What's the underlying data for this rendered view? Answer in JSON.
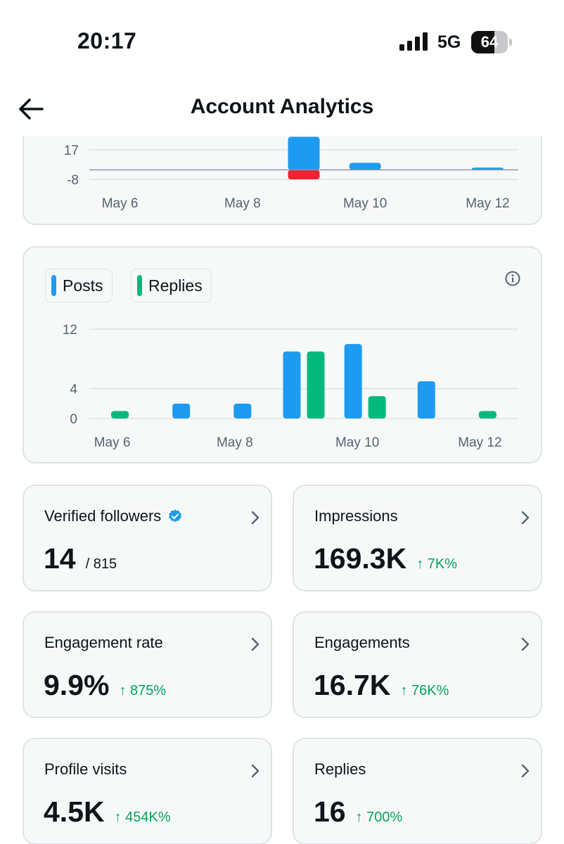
{
  "status_bar": {
    "time": "20:17",
    "network": "5G",
    "battery": "64",
    "battery_level": 0.64
  },
  "header": {
    "title": "Account Analytics",
    "back_icon": "arrow-left-icon"
  },
  "chart_top": {
    "type": "bar",
    "y_ticks": [
      "17",
      "-8"
    ],
    "x_ticks": [
      "May 6",
      "May 8",
      "May 10",
      "May 12"
    ],
    "colors": {
      "positive": "#1d9bf0",
      "negative": "#f4212e"
    },
    "bars": [
      {
        "x": "May 9",
        "positive": 28,
        "negative": -8
      },
      {
        "x": "May 10",
        "positive": 6,
        "negative": 0
      },
      {
        "x": "May 12",
        "positive": 2,
        "negative": 0
      }
    ]
  },
  "chart_data": {
    "type": "bar",
    "categories": [
      "May 6",
      "May 7",
      "May 8",
      "May 9",
      "May 10",
      "May 11",
      "May 12"
    ],
    "series": [
      {
        "name": "Posts",
        "color": "#1d9bf0",
        "values": [
          0,
          2,
          2,
          9,
          10,
          5,
          0
        ]
      },
      {
        "name": "Replies",
        "color": "#00ba7c",
        "values": [
          1,
          0,
          0,
          9,
          3,
          0,
          1
        ]
      }
    ],
    "y_ticks": [
      12,
      4,
      0
    ],
    "x_tick_labels": [
      "May 6",
      "May 8",
      "May 10",
      "May 12"
    ],
    "ylim": [
      0,
      12
    ],
    "grid": true,
    "legend": "top-left"
  },
  "legend": {
    "posts_label": "Posts",
    "replies_label": "Replies",
    "info_icon": "info-icon"
  },
  "stats": [
    {
      "label": "Verified followers",
      "value": "14",
      "total": "/ 815",
      "change": ""
    },
    {
      "label": "Impressions",
      "value": "169.3K",
      "total": "",
      "change": "↑ 7K%"
    },
    {
      "label": "Engagement rate",
      "value": "9.9%",
      "total": "",
      "change": "↑ 875%"
    },
    {
      "label": "Engagements",
      "value": "16.7K",
      "total": "",
      "change": "↑ 76K%"
    },
    {
      "label": "Profile visits",
      "value": "4.5K",
      "total": "",
      "change": "↑ 454K%"
    },
    {
      "label": "Replies",
      "value": "16",
      "total": "",
      "change": "↑ 700%"
    }
  ],
  "colors": {
    "card_bg": "#f7f9f9",
    "card_border": "#dfe3e6",
    "up": "#00a35c",
    "verified": "#1d9bf0"
  }
}
